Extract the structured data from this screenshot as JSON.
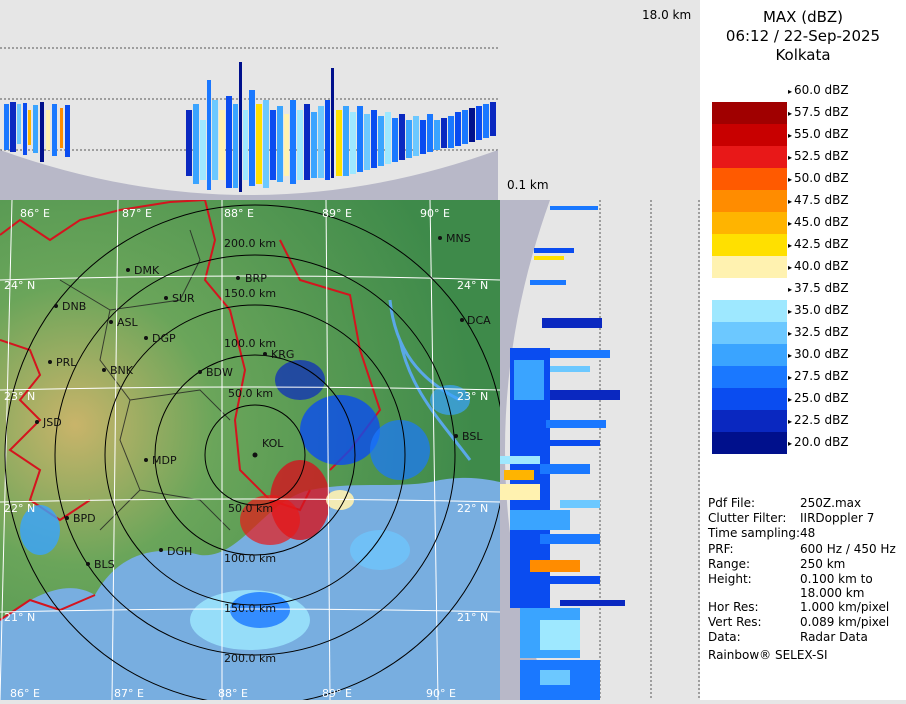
{
  "header": {
    "product": "MAX (dBZ)",
    "datetime": "06:12 / 22-Sep-2025",
    "station": "Kolkata"
  },
  "profile": {
    "height_top_label": "18.0 km",
    "height_bottom_label": "0.1 km"
  },
  "legend": {
    "entries": [
      {
        "label": "60.0 dBZ",
        "color": "#ffffff"
      },
      {
        "label": "57.5 dBZ",
        "color": "#a00000"
      },
      {
        "label": "55.0 dBZ",
        "color": "#c80000"
      },
      {
        "label": "52.5 dBZ",
        "color": "#e81818"
      },
      {
        "label": "50.0 dBZ",
        "color": "#ff5a00"
      },
      {
        "label": "47.5 dBZ",
        "color": "#ff8c00"
      },
      {
        "label": "45.0 dBZ",
        "color": "#ffb400"
      },
      {
        "label": "42.5 dBZ",
        "color": "#ffe000"
      },
      {
        "label": "40.0 dBZ",
        "color": "#fff2b0"
      },
      {
        "label": "37.5 dBZ",
        "color": "#ffffff"
      },
      {
        "label": "35.0 dBZ",
        "color": "#9ee8ff"
      },
      {
        "label": "32.5 dBZ",
        "color": "#6cc8ff"
      },
      {
        "label": "30.0 dBZ",
        "color": "#3aa4ff"
      },
      {
        "label": "27.5 dBZ",
        "color": "#1a78ff"
      },
      {
        "label": "25.0 dBZ",
        "color": "#0a4cf0"
      },
      {
        "label": "22.5 dBZ",
        "color": "#0a28c0"
      },
      {
        "label": "20.0 dBZ",
        "color": "#00108c"
      }
    ]
  },
  "info": {
    "rows": [
      {
        "key": "Pdf File:",
        "value": "250Z.max"
      },
      {
        "key": "Clutter Filter:",
        "value": "IIRDoppler 7"
      },
      {
        "key": "Time sampling:",
        "value": "48"
      },
      {
        "key": "PRF:",
        "value": "600 Hz / 450 Hz"
      },
      {
        "key": "Range:",
        "value": "250 km"
      },
      {
        "key": "Height:",
        "value": "0.100 km to"
      },
      {
        "key": "",
        "value": "18.000 km"
      },
      {
        "key": "Hor Res:",
        "value": "1.000 km/pixel"
      },
      {
        "key": "Vert Res:",
        "value": "0.089 km/pixel"
      },
      {
        "key": "Data:",
        "value": "Radar Data"
      }
    ],
    "footer": "Rainbow® SELEX-SI"
  },
  "map": {
    "lon_labels": [
      "86° E",
      "87° E",
      "88° E",
      "89° E",
      "90° E"
    ],
    "lat_labels": [
      "24° N",
      "23° N",
      "22° N",
      "21° N"
    ],
    "ring_labels": [
      "200.0 km",
      "150.0 km",
      "100.0 km",
      "50.0 km",
      "50.0 km",
      "100.0 km",
      "150.0 km",
      "200.0 km"
    ],
    "cities": [
      "MNS",
      "DMK",
      "BRP",
      "DNB",
      "SUR",
      "DCA",
      "ASL",
      "DGP",
      "KRG",
      "PRL",
      "BNK",
      "BDW",
      "JSD",
      "BSL",
      "MDP",
      "BPD",
      "DGH",
      "BLS",
      "KOL"
    ]
  },
  "colors": {
    "land_dark": "#3e8a4a",
    "land_mid": "#6aa55a",
    "land_high": "#c9b46a",
    "sea": "#78aee0",
    "border": "#d4141e"
  }
}
